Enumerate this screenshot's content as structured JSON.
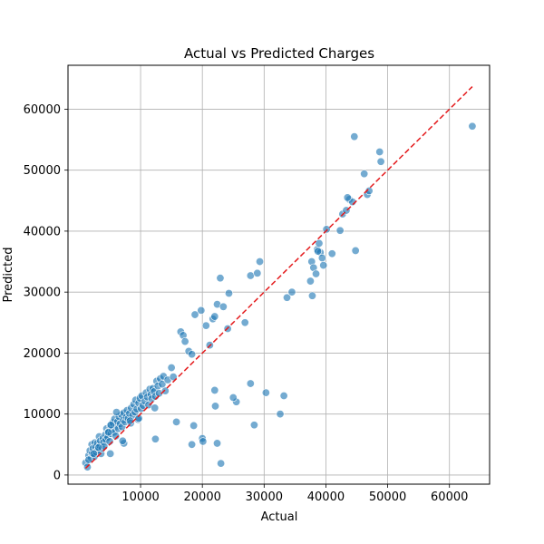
{
  "chart_data": {
    "type": "scatter",
    "title": "Actual vs Predicted Charges",
    "xlabel": "Actual",
    "ylabel": "Predicted",
    "xlim": [
      -1750,
      66500
    ],
    "ylim": [
      -1500,
      67200
    ],
    "xticks": [
      10000,
      20000,
      30000,
      40000,
      50000,
      60000
    ],
    "xtick_labels": [
      "10000",
      "20000",
      "30000",
      "40000",
      "50000",
      "60000"
    ],
    "yticks": [
      0,
      10000,
      20000,
      30000,
      40000,
      50000,
      60000
    ],
    "ytick_labels": [
      "0",
      "10000",
      "20000",
      "30000",
      "40000",
      "50000",
      "60000"
    ],
    "grid": true,
    "legend": "none",
    "point_color": "#1f77b4",
    "line_color": "#e41a1c",
    "reference_line": {
      "label": "",
      "x": [
        1100,
        63700
      ],
      "y": [
        1100,
        63700
      ],
      "style": "dashed"
    },
    "series": [
      {
        "x": [
          1100,
          1400,
          1600,
          1800,
          2000,
          2100,
          2200,
          2300,
          2500,
          2600,
          2700,
          2800,
          3000,
          3100,
          3300,
          3400,
          3500,
          3600,
          3800,
          3900,
          4000,
          4100,
          4300,
          4400,
          4500,
          4700,
          4800,
          5000,
          5100,
          5200,
          5400,
          5500,
          5700,
          5800,
          6000,
          6100,
          6300,
          6400,
          6500,
          6700,
          6900,
          7000,
          7200,
          7300,
          7500,
          7700,
          7800,
          8000,
          8200,
          8400,
          8500,
          8700,
          8900,
          9100,
          9200,
          9400,
          9600,
          9700,
          9900,
          10100,
          10200,
          10400,
          10700,
          10900,
          11100,
          11300,
          11500,
          11700,
          11800,
          12000,
          12200,
          12400,
          12600,
          12800,
          13000,
          13200,
          13500,
          13700,
          14000,
          14400,
          15000,
          15300,
          1600,
          2400,
          3200,
          4800,
          5200,
          6100,
          7300,
          8300,
          9700,
          12300,
          16500,
          16900,
          17200,
          17800,
          18300,
          18800,
          19800,
          20600,
          21200,
          21700,
          22000,
          22400,
          22900,
          23400,
          24100,
          22000,
          24300,
          26900,
          27800,
          28900,
          29300,
          33700,
          34500,
          37500,
          37700,
          38000,
          38400,
          38600,
          38900,
          39100,
          39600,
          40100,
          41000,
          42300,
          42700,
          43300,
          43800,
          44300,
          44800,
          37800,
          38700,
          39400,
          43500,
          46200,
          46700,
          47000,
          48700,
          48900,
          44600,
          63700,
          15800,
          18300,
          12400,
          20000,
          20100,
          22400,
          25500,
          25000,
          27800,
          28400,
          30300,
          32600,
          33200,
          18600,
          22100,
          23000,
          5100,
          7100
        ],
        "y": [
          2000,
          1300,
          3200,
          4000,
          2800,
          5000,
          3600,
          4400,
          3000,
          5300,
          4600,
          3800,
          5200,
          4100,
          6300,
          4800,
          5600,
          3500,
          4400,
          6000,
          5400,
          4700,
          6600,
          5800,
          7600,
          6200,
          7100,
          5500,
          8100,
          6800,
          7400,
          8600,
          7000,
          9200,
          6400,
          8000,
          8800,
          7600,
          9600,
          8400,
          9900,
          7900,
          9000,
          10200,
          8700,
          9500,
          10600,
          9300,
          10100,
          8500,
          11000,
          9800,
          11600,
          10300,
          12300,
          10800,
          9100,
          11800,
          12600,
          10900,
          13000,
          11400,
          12100,
          13500,
          12800,
          11500,
          14100,
          13200,
          12500,
          14200,
          13700,
          12900,
          15400,
          14600,
          13400,
          15800,
          14900,
          16200,
          13800,
          15600,
          17600,
          16100,
          2500,
          3500,
          4500,
          7000,
          8200,
          10300,
          5200,
          8900,
          9300,
          11000,
          23500,
          22900,
          21900,
          20300,
          19800,
          26300,
          27000,
          24500,
          21300,
          25600,
          26000,
          28000,
          32300,
          27600,
          24000,
          13900,
          29800,
          25000,
          32700,
          33100,
          35000,
          29100,
          30000,
          31800,
          35000,
          34000,
          33000,
          37000,
          38000,
          36500,
          34400,
          40300,
          36300,
          40100,
          42800,
          43400,
          45200,
          44800,
          36800,
          29400,
          36700,
          35600,
          45500,
          49400,
          46000,
          46600,
          53000,
          51400,
          55500,
          57200,
          8700,
          5000,
          5900,
          6000,
          5500,
          5200,
          12000,
          12700,
          15000,
          8200,
          13500,
          10000,
          13000,
          8100,
          11300,
          1900,
          3500,
          5600
        ]
      }
    ]
  }
}
